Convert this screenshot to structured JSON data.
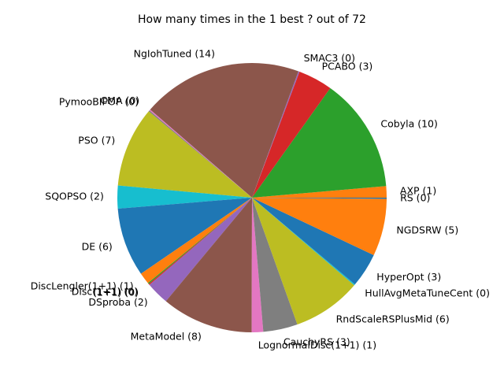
{
  "chart_data": {
    "type": "pie",
    "title": "How many times in the 1 best ? out of 72",
    "start_angle_deg": 0,
    "direction": "counterclockwise",
    "epsilon_for_zero": 0.1,
    "slices": [
      {
        "label": "AXP (1)",
        "value": 1,
        "color": "#ff7f0e"
      },
      {
        "label": "Cobyla (10)",
        "value": 10,
        "color": "#2ca02c"
      },
      {
        "label": "PCABO (3)",
        "value": 3,
        "color": "#d62728"
      },
      {
        "label": "SMAC3 (0)",
        "value": 0,
        "color": "#9467bd"
      },
      {
        "label": "NgIohTuned (14)",
        "value": 14,
        "color": "#8c564b"
      },
      {
        "label": "CMA (0)",
        "value": 0,
        "color": "#e377c2"
      },
      {
        "label": "PymooBIPOP (0)",
        "value": 0,
        "color": "#7f7f7f"
      },
      {
        "label": "PSO (7)",
        "value": 7,
        "color": "#bcbd22"
      },
      {
        "label": "SQOPSO (2)",
        "value": 2,
        "color": "#17becf"
      },
      {
        "label": "DE (6)",
        "value": 6,
        "color": "#1f77b4"
      },
      {
        "label": "DiscLengler(1+1) (1)",
        "value": 1,
        "color": "#ff7f0e"
      },
      {
        "label": "Disc(1+1) (0)",
        "value": 0,
        "color": "#2ca02c"
      },
      {
        "label": "(1+1) (0)",
        "value": 0,
        "color": "#d62728"
      },
      {
        "label": "DSproba (2)",
        "value": 2,
        "color": "#9467bd"
      },
      {
        "label": "MetaModel (8)",
        "value": 8,
        "color": "#8c564b"
      },
      {
        "label": "LognormalDisc(1+1) (1)",
        "value": 1,
        "color": "#e377c2"
      },
      {
        "label": "CauchyRS (3)",
        "value": 3,
        "color": "#7f7f7f"
      },
      {
        "label": "RndScaleRSPlusMid (6)",
        "value": 6,
        "color": "#bcbd22"
      },
      {
        "label": "HullAvgMetaTuneCent (0)",
        "value": 0,
        "color": "#17becf"
      },
      {
        "label": "HyperOpt (3)",
        "value": 3,
        "color": "#1f77b4"
      },
      {
        "label": "NGDSRW (5)",
        "value": 5,
        "color": "#ff7f0e"
      },
      {
        "label": "RS (0)",
        "value": 0,
        "color": "#1f77b4"
      }
    ]
  }
}
